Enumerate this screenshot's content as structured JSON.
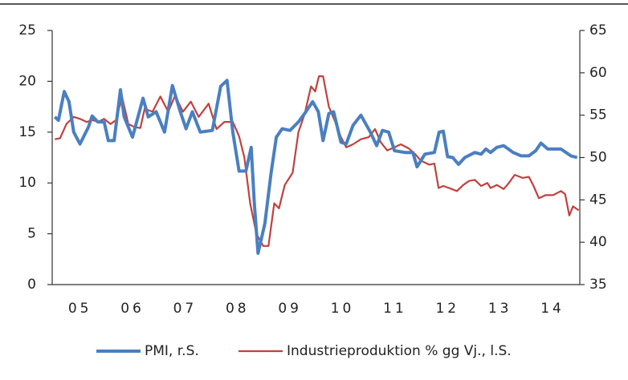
{
  "chart_data": {
    "type": "line",
    "xlim": [
      5,
      15.05
    ],
    "xticks": [
      {
        "value": 5.5,
        "label": "05"
      },
      {
        "value": 6.5,
        "label": "06"
      },
      {
        "value": 7.5,
        "label": "07"
      },
      {
        "value": 8.5,
        "label": "08"
      },
      {
        "value": 9.5,
        "label": "09"
      },
      {
        "value": 10.5,
        "label": "10"
      },
      {
        "value": 11.5,
        "label": "11"
      },
      {
        "value": 12.5,
        "label": "12"
      },
      {
        "value": 13.5,
        "label": "13"
      },
      {
        "value": 14.5,
        "label": "14"
      }
    ],
    "ylim": [
      0,
      25
    ],
    "yticks": [
      0,
      5,
      10,
      15,
      20,
      25
    ],
    "y2lim": [
      35,
      65
    ],
    "y2ticks": [
      35,
      40,
      45,
      50,
      55,
      60,
      65
    ],
    "legend": "bottom",
    "series": [
      {
        "name": "PMI, r.S.",
        "color": "#4a7fc1",
        "axis": "y2",
        "x": [
          5.05,
          5.12,
          5.23,
          5.32,
          5.41,
          5.53,
          5.69,
          5.76,
          5.87,
          5.99,
          6.07,
          6.18,
          6.3,
          6.37,
          6.53,
          6.73,
          6.83,
          6.98,
          7.14,
          7.29,
          7.44,
          7.55,
          7.67,
          7.82,
          8.05,
          8.21,
          8.33,
          8.44,
          8.56,
          8.69,
          8.79,
          8.85,
          8.92,
          9.05,
          9.17,
          9.27,
          9.38,
          9.53,
          9.69,
          9.81,
          9.96,
          10.07,
          10.16,
          10.27,
          10.36,
          10.5,
          10.6,
          10.73,
          10.88,
          11.06,
          11.18,
          11.29,
          11.41,
          11.52,
          11.72,
          11.87,
          11.95,
          12.1,
          12.28,
          12.37,
          12.45,
          12.53,
          12.63,
          12.74,
          12.86,
          13.05,
          13.17,
          13.26,
          13.35,
          13.47,
          13.6,
          13.78,
          13.93,
          14.08,
          14.21,
          14.31,
          14.44,
          14.69,
          14.88,
          15.0
        ],
        "values": [
          54.8,
          54.4,
          57.8,
          56.6,
          53.0,
          51.6,
          53.6,
          54.9,
          54.2,
          54.2,
          52.0,
          52.0,
          58.0,
          54.8,
          52.4,
          57.0,
          54.8,
          55.4,
          53.0,
          58.5,
          55.4,
          53.4,
          55.4,
          53.0,
          53.2,
          58.4,
          59.1,
          53.0,
          48.4,
          48.4,
          51.2,
          44.6,
          38.7,
          42.2,
          48.2,
          52.4,
          53.4,
          53.2,
          54.2,
          55.2,
          56.6,
          55.4,
          52.0,
          55.2,
          55.4,
          51.8,
          51.6,
          53.8,
          55.0,
          53.0,
          51.4,
          53.2,
          53.0,
          50.8,
          50.6,
          50.6,
          48.9,
          50.4,
          50.6,
          53.0,
          53.1,
          50.1,
          50.0,
          49.2,
          50.0,
          50.6,
          50.4,
          51.0,
          50.6,
          51.2,
          51.4,
          50.6,
          50.2,
          50.2,
          50.8,
          51.7,
          51.0,
          51.0,
          50.2,
          50.0
        ]
      },
      {
        "name": "Industrieproduktion % gg Vj., l.S.",
        "color": "#c0413e",
        "axis": "y",
        "x": [
          5.05,
          5.15,
          5.27,
          5.41,
          5.53,
          5.66,
          5.76,
          5.87,
          5.99,
          6.11,
          6.22,
          6.33,
          6.45,
          6.57,
          6.68,
          6.76,
          6.91,
          7.06,
          7.21,
          7.34,
          7.49,
          7.64,
          7.79,
          7.98,
          8.13,
          8.28,
          8.44,
          8.56,
          8.66,
          8.77,
          8.89,
          9.02,
          9.12,
          9.23,
          9.32,
          9.43,
          9.58,
          9.69,
          9.81,
          9.93,
          10.01,
          10.08,
          10.16,
          10.27,
          10.39,
          10.5,
          10.6,
          10.73,
          10.88,
          11.03,
          11.15,
          11.26,
          11.38,
          11.52,
          11.64,
          11.79,
          11.92,
          12.02,
          12.18,
          12.28,
          12.36,
          12.45,
          12.56,
          12.71,
          12.83,
          12.94,
          13.05,
          13.17,
          13.29,
          13.35,
          13.47,
          13.6,
          13.7,
          13.81,
          13.96,
          14.08,
          14.16,
          14.27,
          14.4,
          14.54,
          14.69,
          14.77,
          14.85,
          14.92,
          15.03
        ],
        "values": [
          14.3,
          14.4,
          15.8,
          16.5,
          16.3,
          16.0,
          16.2,
          16.0,
          16.3,
          15.8,
          16.2,
          18.5,
          15.8,
          15.5,
          15.4,
          17.3,
          17.0,
          18.5,
          17.0,
          18.6,
          17.0,
          18.0,
          16.5,
          17.8,
          15.3,
          16.0,
          16.0,
          14.6,
          12.5,
          8.0,
          5.0,
          3.8,
          3.8,
          8.0,
          7.5,
          9.8,
          11.0,
          15.0,
          16.8,
          19.5,
          19.0,
          20.5,
          20.5,
          17.5,
          16.0,
          14.5,
          13.5,
          13.8,
          14.3,
          14.5,
          15.3,
          14.0,
          13.2,
          13.5,
          13.8,
          13.4,
          12.8,
          12.2,
          11.8,
          11.9,
          9.5,
          9.7,
          9.5,
          9.2,
          9.8,
          10.2,
          10.3,
          9.7,
          10.0,
          9.5,
          9.8,
          9.4,
          10.0,
          10.8,
          10.5,
          10.6,
          9.8,
          8.5,
          8.8,
          8.8,
          9.2,
          8.9,
          6.8,
          7.7,
          7.3
        ]
      }
    ]
  }
}
